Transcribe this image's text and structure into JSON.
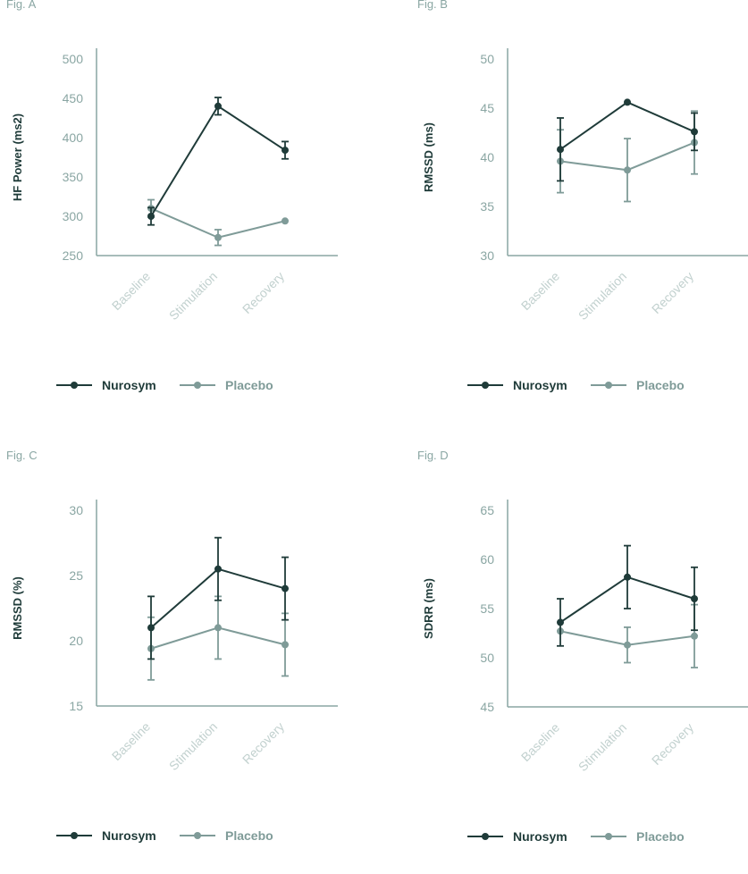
{
  "colors": {
    "nurosym": "#1f3b39",
    "placebo": "#7f9b98",
    "axis": "#8aa6a3",
    "category": "#c2d1cf"
  },
  "chart_data": [
    {
      "id": "a",
      "label": "Fig. A",
      "type": "line",
      "ylabel": "HF Power (ms2)",
      "categories": [
        "Baseline",
        "Stimulation",
        "Recovery"
      ],
      "ylim": [
        250,
        500
      ],
      "yticks": [
        250,
        300,
        350,
        400,
        450,
        500
      ],
      "series": [
        {
          "name": "Nurosym",
          "values": [
            300,
            440,
            384
          ],
          "err": [
            11,
            11,
            11
          ]
        },
        {
          "name": "Placebo",
          "values": [
            310,
            273,
            294
          ],
          "err": [
            11,
            10,
            0
          ]
        }
      ]
    },
    {
      "id": "b",
      "label": "Fig. B",
      "type": "line",
      "ylabel": "RMSSD (ms)",
      "categories": [
        "Baseline",
        "Stimulation",
        "Recovery"
      ],
      "ylim": [
        30,
        50
      ],
      "yticks": [
        30,
        35,
        40,
        45,
        50
      ],
      "series": [
        {
          "name": "Nurosym",
          "values": [
            40.8,
            45.6,
            42.6
          ],
          "err": [
            3.2,
            0,
            1.9
          ]
        },
        {
          "name": "Placebo",
          "values": [
            39.6,
            38.7,
            41.5
          ],
          "err": [
            3.2,
            3.2,
            3.2
          ]
        }
      ]
    },
    {
      "id": "c",
      "label": "Fig. C",
      "type": "line",
      "ylabel": "RMSSD (%)",
      "categories": [
        "Baseline",
        "Stimulation",
        "Recovery"
      ],
      "ylim": [
        15,
        30
      ],
      "yticks": [
        15,
        20,
        25,
        30
      ],
      "series": [
        {
          "name": "Nurosym",
          "values": [
            21,
            25.5,
            24
          ],
          "err": [
            2.4,
            2.4,
            2.4
          ]
        },
        {
          "name": "Placebo",
          "values": [
            19.4,
            21,
            19.7
          ],
          "err": [
            2.4,
            2.4,
            2.4
          ]
        }
      ]
    },
    {
      "id": "d",
      "label": "Fig. D",
      "type": "line",
      "ylabel": "SDRR (ms)",
      "categories": [
        "Baseline",
        "Stimulation",
        "Recovery"
      ],
      "ylim": [
        45,
        65
      ],
      "yticks": [
        45,
        50,
        55,
        60,
        65
      ],
      "series": [
        {
          "name": "Nurosym",
          "values": [
            53.6,
            58.2,
            56
          ],
          "err": [
            2.4,
            3.2,
            3.2
          ]
        },
        {
          "name": "Placebo",
          "values": [
            52.7,
            51.3,
            52.2
          ],
          "err": [
            0,
            1.8,
            3.2
          ]
        }
      ]
    }
  ]
}
